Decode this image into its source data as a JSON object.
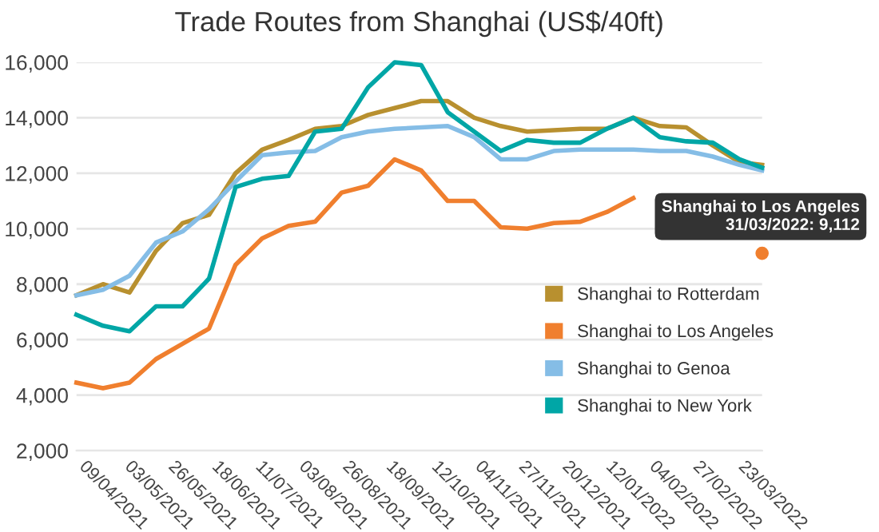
{
  "chart_data": {
    "type": "line",
    "title": "Trade Routes from Shanghai (US$/40ft)",
    "x": [
      "2021-04-03",
      "2021-04-17",
      "2021-05-01",
      "2021-05-15",
      "2021-05-29",
      "2021-06-12",
      "2021-06-26",
      "2021-07-10",
      "2021-07-24",
      "2021-08-07",
      "2021-08-21",
      "2021-09-04",
      "2021-09-18",
      "2021-10-02",
      "2021-10-16",
      "2021-10-30",
      "2021-11-13",
      "2021-11-27",
      "2021-12-11",
      "2021-12-25",
      "2022-01-08",
      "2022-01-22",
      "2022-02-05",
      "2022-02-19",
      "2022-03-05",
      "2022-03-19",
      "2022-03-31"
    ],
    "series": [
      {
        "name": "Shanghai to Rotterdam",
        "color": "#b8902f",
        "values": [
          7600,
          8000,
          7700,
          9200,
          10200,
          10500,
          12000,
          12850,
          13200,
          13600,
          13700,
          14100,
          14350,
          14600,
          14600,
          14000,
          13700,
          13500,
          13550,
          13600,
          13600,
          14000,
          13700,
          13650,
          13000,
          12400,
          12300
        ]
      },
      {
        "name": "Shanghai to Los Angeles",
        "color": "#f07f2e",
        "values": [
          4450,
          4250,
          4450,
          5300,
          5850,
          6400,
          8700,
          9650,
          10100,
          10250,
          11300,
          11550,
          12500,
          12100,
          11000,
          11000,
          10050,
          10000,
          10200,
          10250,
          10600,
          11100,
          null,
          null,
          null,
          null,
          9112
        ]
      },
      {
        "name": "Shanghai to Genoa",
        "color": "#85bde6",
        "values": [
          7600,
          7800,
          8300,
          9500,
          9900,
          10700,
          11700,
          12650,
          12750,
          12800,
          13300,
          13500,
          13600,
          13650,
          13700,
          13300,
          12500,
          12500,
          12800,
          12850,
          12850,
          12850,
          12800,
          12800,
          12600,
          12300,
          12100
        ]
      },
      {
        "name": "Shanghai to New York",
        "color": "#00a6a6",
        "values": [
          6900,
          6500,
          6300,
          7200,
          7200,
          8200,
          11500,
          11800,
          11900,
          13500,
          13600,
          15100,
          16000,
          15900,
          14200,
          13500,
          12800,
          13200,
          13100,
          13100,
          13600,
          14000,
          13300,
          13150,
          13100,
          12500,
          12200
        ]
      }
    ],
    "xlim": [
      "2021-04-03",
      "2022-03-31"
    ],
    "xticks": [
      {
        "value": "2021-04-09",
        "label": "09/04/2021"
      },
      {
        "value": "2021-05-03",
        "label": "03/05/2021"
      },
      {
        "value": "2021-05-26",
        "label": "26/05/2021"
      },
      {
        "value": "2021-06-18",
        "label": "18/06/2021"
      },
      {
        "value": "2021-07-11",
        "label": "11/07/2021"
      },
      {
        "value": "2021-08-03",
        "label": "03/08/2021"
      },
      {
        "value": "2021-08-26",
        "label": "26/08/2021"
      },
      {
        "value": "2021-09-18",
        "label": "18/09/2021"
      },
      {
        "value": "2021-10-12",
        "label": "12/10/2021"
      },
      {
        "value": "2021-11-04",
        "label": "04/11/2021"
      },
      {
        "value": "2021-11-27",
        "label": "27/11/2021"
      },
      {
        "value": "2021-12-20",
        "label": "20/12/2021"
      },
      {
        "value": "2022-01-12",
        "label": "12/01/2022"
      },
      {
        "value": "2022-02-04",
        "label": "04/02/2022"
      },
      {
        "value": "2022-02-27",
        "label": "27/02/2022"
      },
      {
        "value": "2022-03-23",
        "label": "23/03/2022"
      }
    ],
    "ylim": [
      2000,
      16000
    ],
    "yticks": [
      {
        "value": 2000,
        "label": "2,000"
      },
      {
        "value": 4000,
        "label": "4,000"
      },
      {
        "value": 6000,
        "label": "6,000"
      },
      {
        "value": 8000,
        "label": "8,000"
      },
      {
        "value": 10000,
        "label": "10,000"
      },
      {
        "value": 12000,
        "label": "12,000"
      },
      {
        "value": 14000,
        "label": "14,000"
      },
      {
        "value": 16000,
        "label": "16,000"
      }
    ],
    "grid": "y",
    "legend": "bottom right",
    "marker": "none",
    "line_style": "solid",
    "annotations": [
      {
        "text": "Shanghai to Los Angeles\n31/03/2022: 9,112",
        "x": "2022-03-31",
        "y": 9112
      }
    ]
  }
}
